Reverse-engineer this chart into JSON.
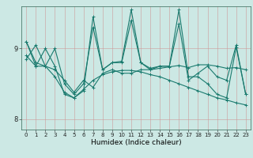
{
  "title": "",
  "xlabel": "Humidex (Indice chaleur)",
  "ylabel": "",
  "background_color": "#cce8e4",
  "grid_color": "#cc9999",
  "line_color": "#1a7a6e",
  "xlim": [
    -0.5,
    23.5
  ],
  "ylim": [
    7.85,
    9.6
  ],
  "yticks": [
    8,
    9
  ],
  "xticks": [
    0,
    1,
    2,
    3,
    4,
    5,
    6,
    7,
    8,
    9,
    10,
    11,
    12,
    13,
    14,
    15,
    16,
    17,
    18,
    19,
    20,
    21,
    22,
    23
  ],
  "series": [
    [
      8.85,
      9.05,
      8.75,
      9.0,
      8.5,
      8.35,
      8.5,
      9.3,
      8.7,
      8.8,
      8.8,
      9.4,
      8.8,
      8.7,
      8.75,
      8.75,
      9.35,
      8.55,
      8.65,
      8.75,
      8.6,
      8.55,
      9.05,
      8.35
    ],
    [
      8.9,
      8.75,
      8.75,
      8.7,
      8.55,
      8.38,
      8.55,
      8.45,
      8.65,
      8.7,
      8.65,
      8.65,
      8.7,
      8.7,
      8.72,
      8.74,
      8.76,
      8.73,
      8.77,
      8.77,
      8.75,
      8.72,
      8.73,
      8.7
    ],
    [
      9.1,
      8.75,
      9.0,
      8.75,
      8.35,
      8.3,
      8.4,
      9.45,
      8.7,
      8.8,
      8.82,
      9.55,
      8.8,
      8.72,
      8.75,
      8.75,
      9.55,
      8.6,
      8.6,
      8.5,
      8.35,
      8.3,
      9.02,
      8.35
    ],
    [
      9.1,
      8.8,
      8.75,
      8.6,
      8.38,
      8.3,
      8.42,
      8.55,
      8.63,
      8.67,
      8.69,
      8.69,
      8.67,
      8.63,
      8.6,
      8.55,
      8.5,
      8.45,
      8.4,
      8.35,
      8.3,
      8.27,
      8.23,
      8.2
    ]
  ],
  "marker": "+",
  "markersize": 3,
  "linewidth": 0.8,
  "font_size_xtick": 5,
  "font_size_ytick": 6,
  "font_size_xlabel": 6.5
}
